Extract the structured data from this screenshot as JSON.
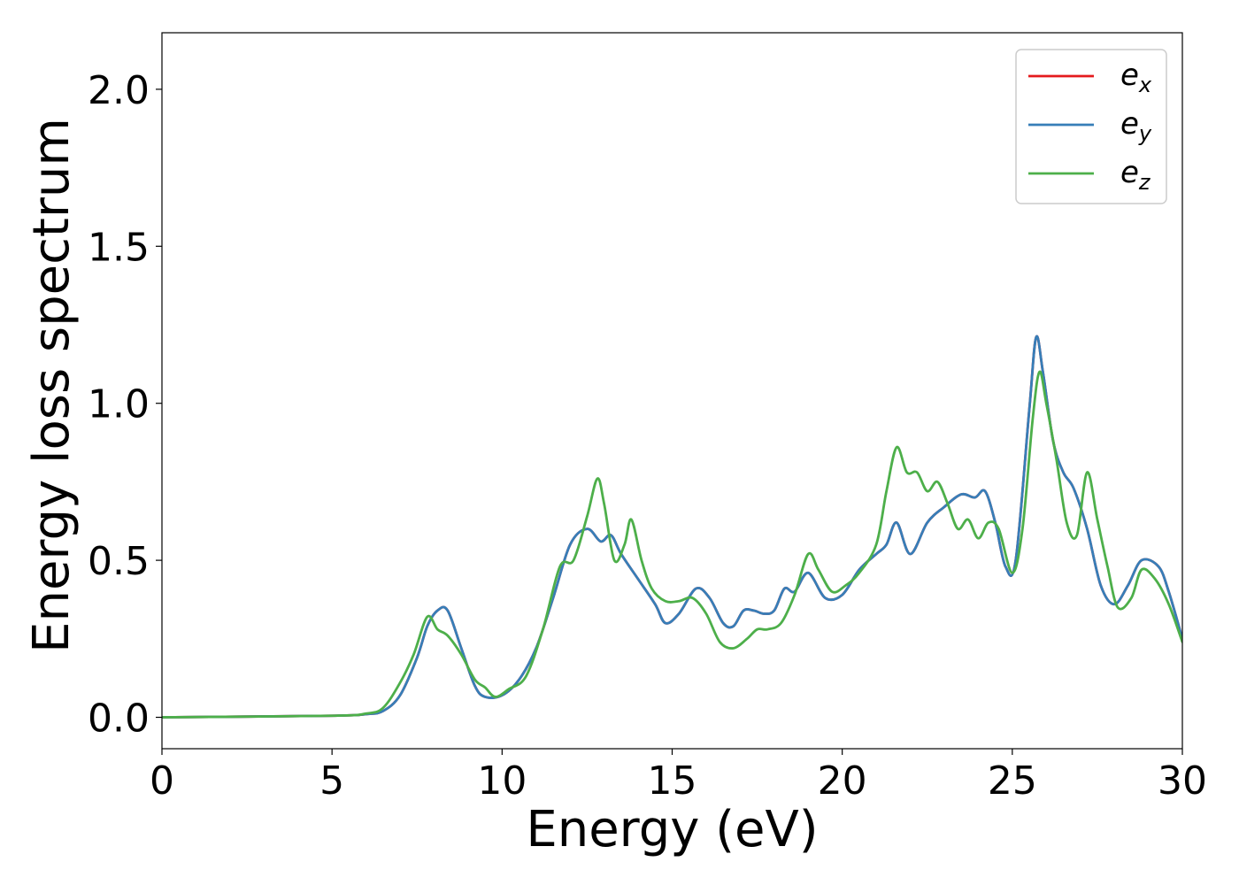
{
  "chart_data": {
    "type": "line",
    "xlabel": "Energy (eV)",
    "ylabel": "Energy loss spectrum",
    "xlim": [
      0,
      30
    ],
    "ylim": [
      -0.1,
      2.18
    ],
    "xticks": [
      0,
      5,
      10,
      15,
      20,
      25,
      30
    ],
    "yticks": [
      0.0,
      0.5,
      1.0,
      1.5,
      2.0
    ],
    "xtick_labels": [
      "0",
      "5",
      "10",
      "15",
      "20",
      "25",
      "30"
    ],
    "ytick_labels": [
      "0.0",
      "0.5",
      "1.0",
      "1.5",
      "2.0"
    ],
    "grid": false,
    "legend_position": "top-right",
    "series": [
      {
        "name": "e",
        "subscript": "x",
        "color": "#e41a1c",
        "x": [
          0,
          5,
          6,
          6.5,
          7,
          7.5,
          7.8,
          8.1,
          8.4,
          8.8,
          9.2,
          9.5,
          10,
          10.5,
          11,
          11.5,
          12,
          12.5,
          12.9,
          13.2,
          13.5,
          14,
          14.5,
          14.8,
          15.2,
          15.7,
          16.1,
          16.5,
          16.8,
          17.1,
          17.4,
          17.7,
          18,
          18.3,
          18.6,
          19,
          19.5,
          20,
          20.5,
          21,
          21.3,
          21.6,
          22,
          22.5,
          23,
          23.5,
          23.9,
          24.2,
          24.5,
          24.8,
          25.1,
          25.5,
          25.7,
          25.9,
          26.2,
          26.5,
          26.8,
          27.2,
          27.6,
          28,
          28.4,
          28.8,
          29.3,
          29.6,
          30
        ],
        "y": [
          0,
          0.005,
          0.01,
          0.02,
          0.07,
          0.19,
          0.29,
          0.34,
          0.34,
          0.22,
          0.1,
          0.065,
          0.07,
          0.12,
          0.22,
          0.38,
          0.55,
          0.6,
          0.56,
          0.58,
          0.52,
          0.44,
          0.36,
          0.3,
          0.33,
          0.41,
          0.38,
          0.3,
          0.29,
          0.34,
          0.34,
          0.33,
          0.34,
          0.41,
          0.4,
          0.46,
          0.38,
          0.39,
          0.47,
          0.52,
          0.55,
          0.62,
          0.52,
          0.62,
          0.67,
          0.71,
          0.7,
          0.72,
          0.62,
          0.48,
          0.5,
          0.98,
          1.21,
          1.1,
          0.88,
          0.78,
          0.73,
          0.6,
          0.42,
          0.36,
          0.42,
          0.5,
          0.48,
          0.4,
          0.25
        ]
      },
      {
        "name": "e",
        "subscript": "y",
        "color": "#377eb8",
        "x": [
          0,
          5,
          6,
          6.5,
          7,
          7.5,
          7.8,
          8.1,
          8.4,
          8.8,
          9.2,
          9.5,
          10,
          10.5,
          11,
          11.5,
          12,
          12.5,
          12.9,
          13.2,
          13.5,
          14,
          14.5,
          14.8,
          15.2,
          15.7,
          16.1,
          16.5,
          16.8,
          17.1,
          17.4,
          17.7,
          18,
          18.3,
          18.6,
          19,
          19.5,
          20,
          20.5,
          21,
          21.3,
          21.6,
          22,
          22.5,
          23,
          23.5,
          23.9,
          24.2,
          24.5,
          24.8,
          25.1,
          25.5,
          25.7,
          25.9,
          26.2,
          26.5,
          26.8,
          27.2,
          27.6,
          28,
          28.4,
          28.8,
          29.3,
          29.6,
          30
        ],
        "y": [
          0,
          0.005,
          0.01,
          0.02,
          0.07,
          0.19,
          0.29,
          0.34,
          0.34,
          0.22,
          0.1,
          0.065,
          0.07,
          0.12,
          0.22,
          0.38,
          0.55,
          0.6,
          0.56,
          0.58,
          0.52,
          0.44,
          0.36,
          0.3,
          0.33,
          0.41,
          0.38,
          0.3,
          0.29,
          0.34,
          0.34,
          0.33,
          0.34,
          0.41,
          0.4,
          0.46,
          0.38,
          0.39,
          0.47,
          0.52,
          0.55,
          0.62,
          0.52,
          0.62,
          0.67,
          0.71,
          0.7,
          0.72,
          0.62,
          0.48,
          0.5,
          0.98,
          1.21,
          1.1,
          0.88,
          0.78,
          0.73,
          0.6,
          0.42,
          0.36,
          0.42,
          0.5,
          0.48,
          0.4,
          0.25
        ]
      },
      {
        "name": "e",
        "subscript": "z",
        "color": "#4daf4a",
        "x": [
          0,
          5,
          6,
          6.5,
          7,
          7.4,
          7.8,
          8.1,
          8.4,
          8.8,
          9.2,
          9.5,
          9.8,
          10.2,
          10.7,
          11.2,
          11.7,
          12.1,
          12.5,
          12.8,
          13,
          13.3,
          13.6,
          13.8,
          14.1,
          14.4,
          14.8,
          15.2,
          15.6,
          16,
          16.4,
          16.8,
          17.2,
          17.5,
          17.8,
          18.2,
          18.6,
          19,
          19.3,
          19.7,
          20.1,
          20.5,
          21,
          21.3,
          21.6,
          21.9,
          22.2,
          22.5,
          22.8,
          23.1,
          23.4,
          23.7,
          24,
          24.3,
          24.6,
          25,
          25.3,
          25.6,
          25.8,
          26,
          26.3,
          26.6,
          26.9,
          27.2,
          27.5,
          27.8,
          28.1,
          28.5,
          28.8,
          29.2,
          29.6,
          30
        ],
        "y": [
          0,
          0.005,
          0.012,
          0.03,
          0.11,
          0.2,
          0.32,
          0.28,
          0.26,
          0.2,
          0.12,
          0.095,
          0.065,
          0.09,
          0.13,
          0.28,
          0.48,
          0.5,
          0.64,
          0.76,
          0.68,
          0.5,
          0.55,
          0.63,
          0.5,
          0.41,
          0.37,
          0.37,
          0.38,
          0.33,
          0.24,
          0.22,
          0.25,
          0.28,
          0.28,
          0.3,
          0.39,
          0.52,
          0.47,
          0.4,
          0.42,
          0.46,
          0.55,
          0.72,
          0.86,
          0.78,
          0.78,
          0.72,
          0.75,
          0.68,
          0.6,
          0.63,
          0.57,
          0.62,
          0.6,
          0.46,
          0.6,
          0.95,
          1.1,
          1.0,
          0.82,
          0.62,
          0.58,
          0.78,
          0.63,
          0.48,
          0.35,
          0.38,
          0.47,
          0.44,
          0.36,
          0.24
        ]
      }
    ]
  }
}
